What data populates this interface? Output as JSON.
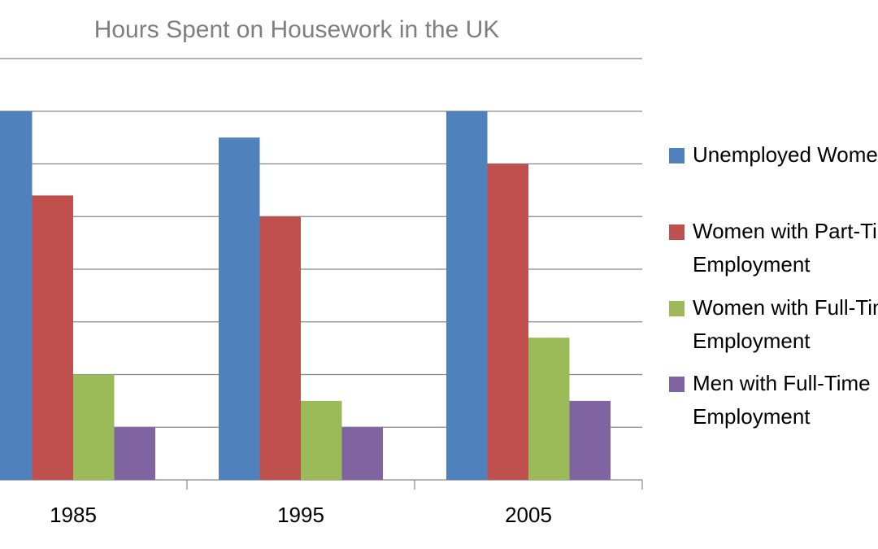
{
  "chart_data": {
    "type": "bar",
    "title": "Hours Spent on Housework in the UK",
    "categories": [
      "1985",
      "1995",
      "2005"
    ],
    "series": [
      {
        "name": "Unemployed Women",
        "color": "#4f81bd",
        "values": [
          7,
          6.5,
          7
        ]
      },
      {
        "name": "Women with Part-Time Employment",
        "color": "#c0504d",
        "values": [
          5.4,
          5,
          6
        ]
      },
      {
        "name": "Women with Full-Time Employment",
        "color": "#9bbb59",
        "values": [
          2,
          1.5,
          2.7
        ]
      },
      {
        "name": "Men with Full-Time Employment",
        "color": "#8064a2",
        "values": [
          1,
          1,
          1.5
        ]
      }
    ],
    "ylim": [
      0,
      8
    ],
    "yticks": [
      0,
      1,
      2,
      3,
      4,
      5,
      6,
      7,
      8
    ],
    "grid": true,
    "legend": "right"
  }
}
